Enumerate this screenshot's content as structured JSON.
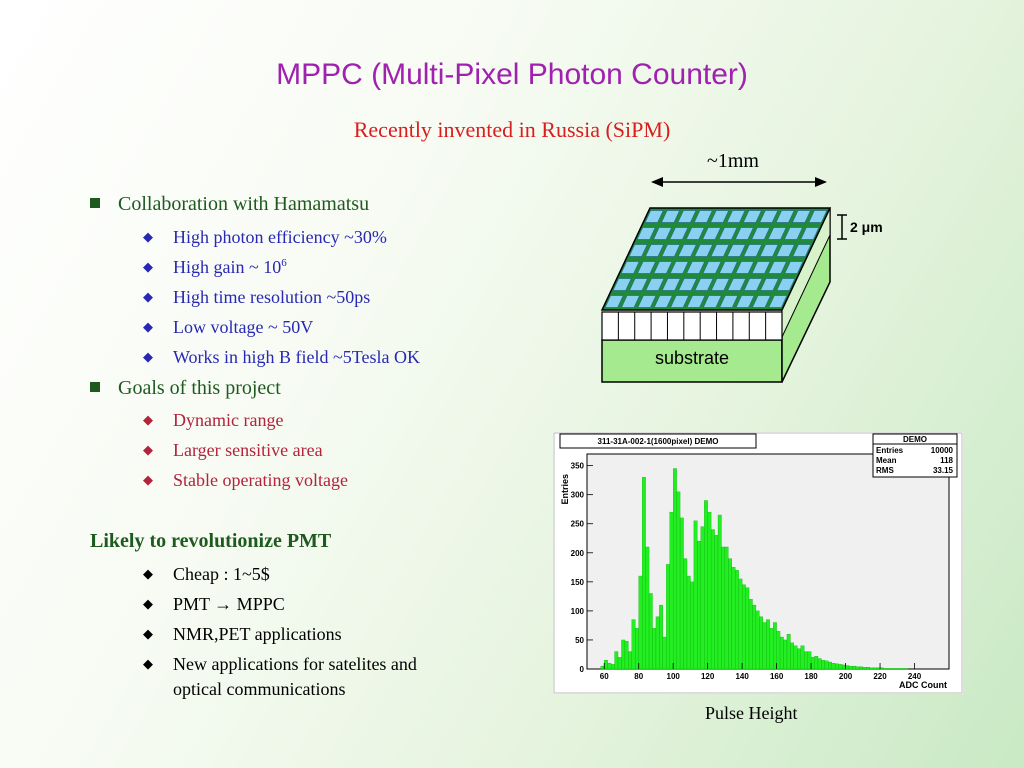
{
  "title": "MPPC (Multi-Pixel Photon Counter)",
  "subtitle": "Recently invented in Russia (SiPM)",
  "collab": {
    "heading": "Collaboration with Hamamatsu",
    "items": [
      "High photon efficiency ~30%",
      "High gain ~ 10",
      "High time resolution ~50ps",
      "Low voltage ~ 50V",
      "Works in high B field ~5Tesla OK"
    ],
    "gain_exp": "6"
  },
  "goals": {
    "heading": "Goals of this project",
    "items": [
      "Dynamic range",
      "Larger sensitive area",
      "Stable operating voltage"
    ]
  },
  "revolution": {
    "heading": "Likely to revolutionize PMT",
    "items": [
      "Cheap : 1~5$",
      "PMT → MPPC",
      "NMR,PET applications",
      "New applications for satelites and",
      "optical communications"
    ]
  },
  "diagram": {
    "size_label": "~1mm",
    "depth_label": "2 μm",
    "substrate_label": "substrate"
  },
  "histogram": {
    "title": "311-31A-002-1(1600pixel) DEMO",
    "stats": {
      "header": "DEMO",
      "entries_label": "Entries",
      "entries_value": "10000",
      "mean_label": "Mean",
      "mean_value": "118",
      "rms_label": "RMS",
      "rms_value": "33.15"
    },
    "ylabel": "Entries",
    "xlabel": "ADC Count",
    "caption": "Pulse Height"
  },
  "chart_data": {
    "type": "bar",
    "title": "311-31A-002-1(1600pixel) DEMO",
    "xlabel": "ADC Count",
    "ylabel": "Entries",
    "xlim": [
      50,
      260
    ],
    "ylim": [
      0,
      370
    ],
    "xticks": [
      60,
      80,
      100,
      120,
      140,
      160,
      180,
      200,
      220,
      240
    ],
    "yticks": [
      0,
      50,
      100,
      150,
      200,
      250,
      300,
      350
    ],
    "x": [
      58,
      60,
      62,
      64,
      66,
      68,
      70,
      72,
      74,
      76,
      78,
      80,
      82,
      84,
      86,
      88,
      90,
      92,
      94,
      96,
      98,
      100,
      102,
      104,
      106,
      108,
      110,
      112,
      114,
      116,
      118,
      120,
      122,
      124,
      126,
      128,
      130,
      132,
      134,
      136,
      138,
      140,
      142,
      144,
      146,
      148,
      150,
      152,
      154,
      156,
      158,
      160,
      162,
      164,
      166,
      168,
      170,
      172,
      174,
      176,
      178,
      180,
      182,
      184,
      186,
      188,
      190,
      192,
      194,
      196,
      198,
      200,
      202,
      204,
      206,
      208,
      210,
      212,
      214,
      216,
      218,
      220,
      222,
      224,
      226,
      228,
      230,
      232,
      234,
      236,
      238,
      240
    ],
    "values": [
      5,
      15,
      10,
      8,
      30,
      20,
      50,
      48,
      30,
      85,
      70,
      160,
      330,
      210,
      130,
      70,
      90,
      110,
      55,
      180,
      270,
      345,
      305,
      260,
      190,
      160,
      150,
      255,
      220,
      245,
      290,
      270,
      240,
      230,
      265,
      210,
      210,
      190,
      175,
      170,
      155,
      145,
      140,
      120,
      110,
      100,
      90,
      80,
      85,
      70,
      80,
      65,
      55,
      50,
      60,
      45,
      40,
      35,
      40,
      30,
      30,
      20,
      22,
      18,
      15,
      14,
      12,
      10,
      9,
      8,
      7,
      6,
      5,
      5,
      4,
      4,
      3,
      3,
      2,
      2,
      2,
      2,
      1,
      1,
      1,
      1,
      1,
      1,
      1,
      0,
      0,
      0
    ]
  }
}
